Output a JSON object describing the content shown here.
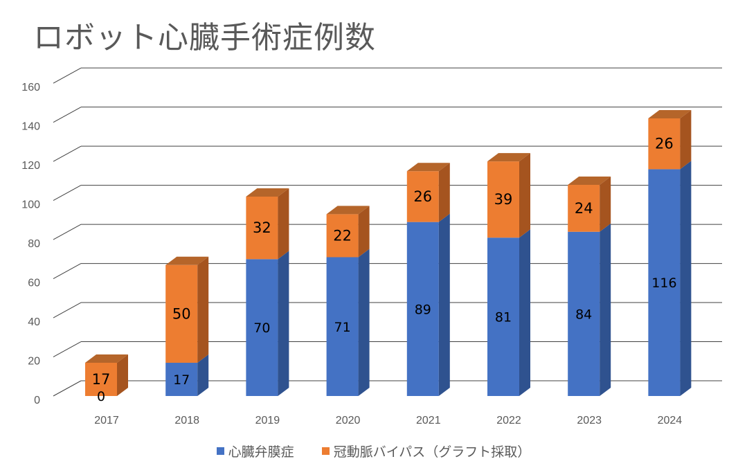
{
  "chart_data": {
    "type": "bar",
    "stacked": true,
    "three_d": true,
    "title": "ロボット心臓手術症例数",
    "categories": [
      "2017",
      "2018",
      "2019",
      "2020",
      "2021",
      "2022",
      "2023",
      "2024"
    ],
    "series": [
      {
        "name": "心臓弁膜症",
        "color": "#4472C4",
        "side_color": "#2F528F",
        "values": [
          0,
          17,
          70,
          71,
          89,
          81,
          84,
          116
        ]
      },
      {
        "name": "冠動脈バイパス（グラフト採取）",
        "color": "#ED7D31",
        "side_color": "#A5541F",
        "values": [
          17,
          50,
          32,
          22,
          26,
          39,
          24,
          26
        ]
      }
    ],
    "ylim": [
      0,
      160
    ],
    "yticks": [
      0,
      20,
      40,
      60,
      80,
      100,
      120,
      140,
      160
    ],
    "grid": true,
    "legend": "bottom",
    "xlabel": "",
    "ylabel": ""
  }
}
